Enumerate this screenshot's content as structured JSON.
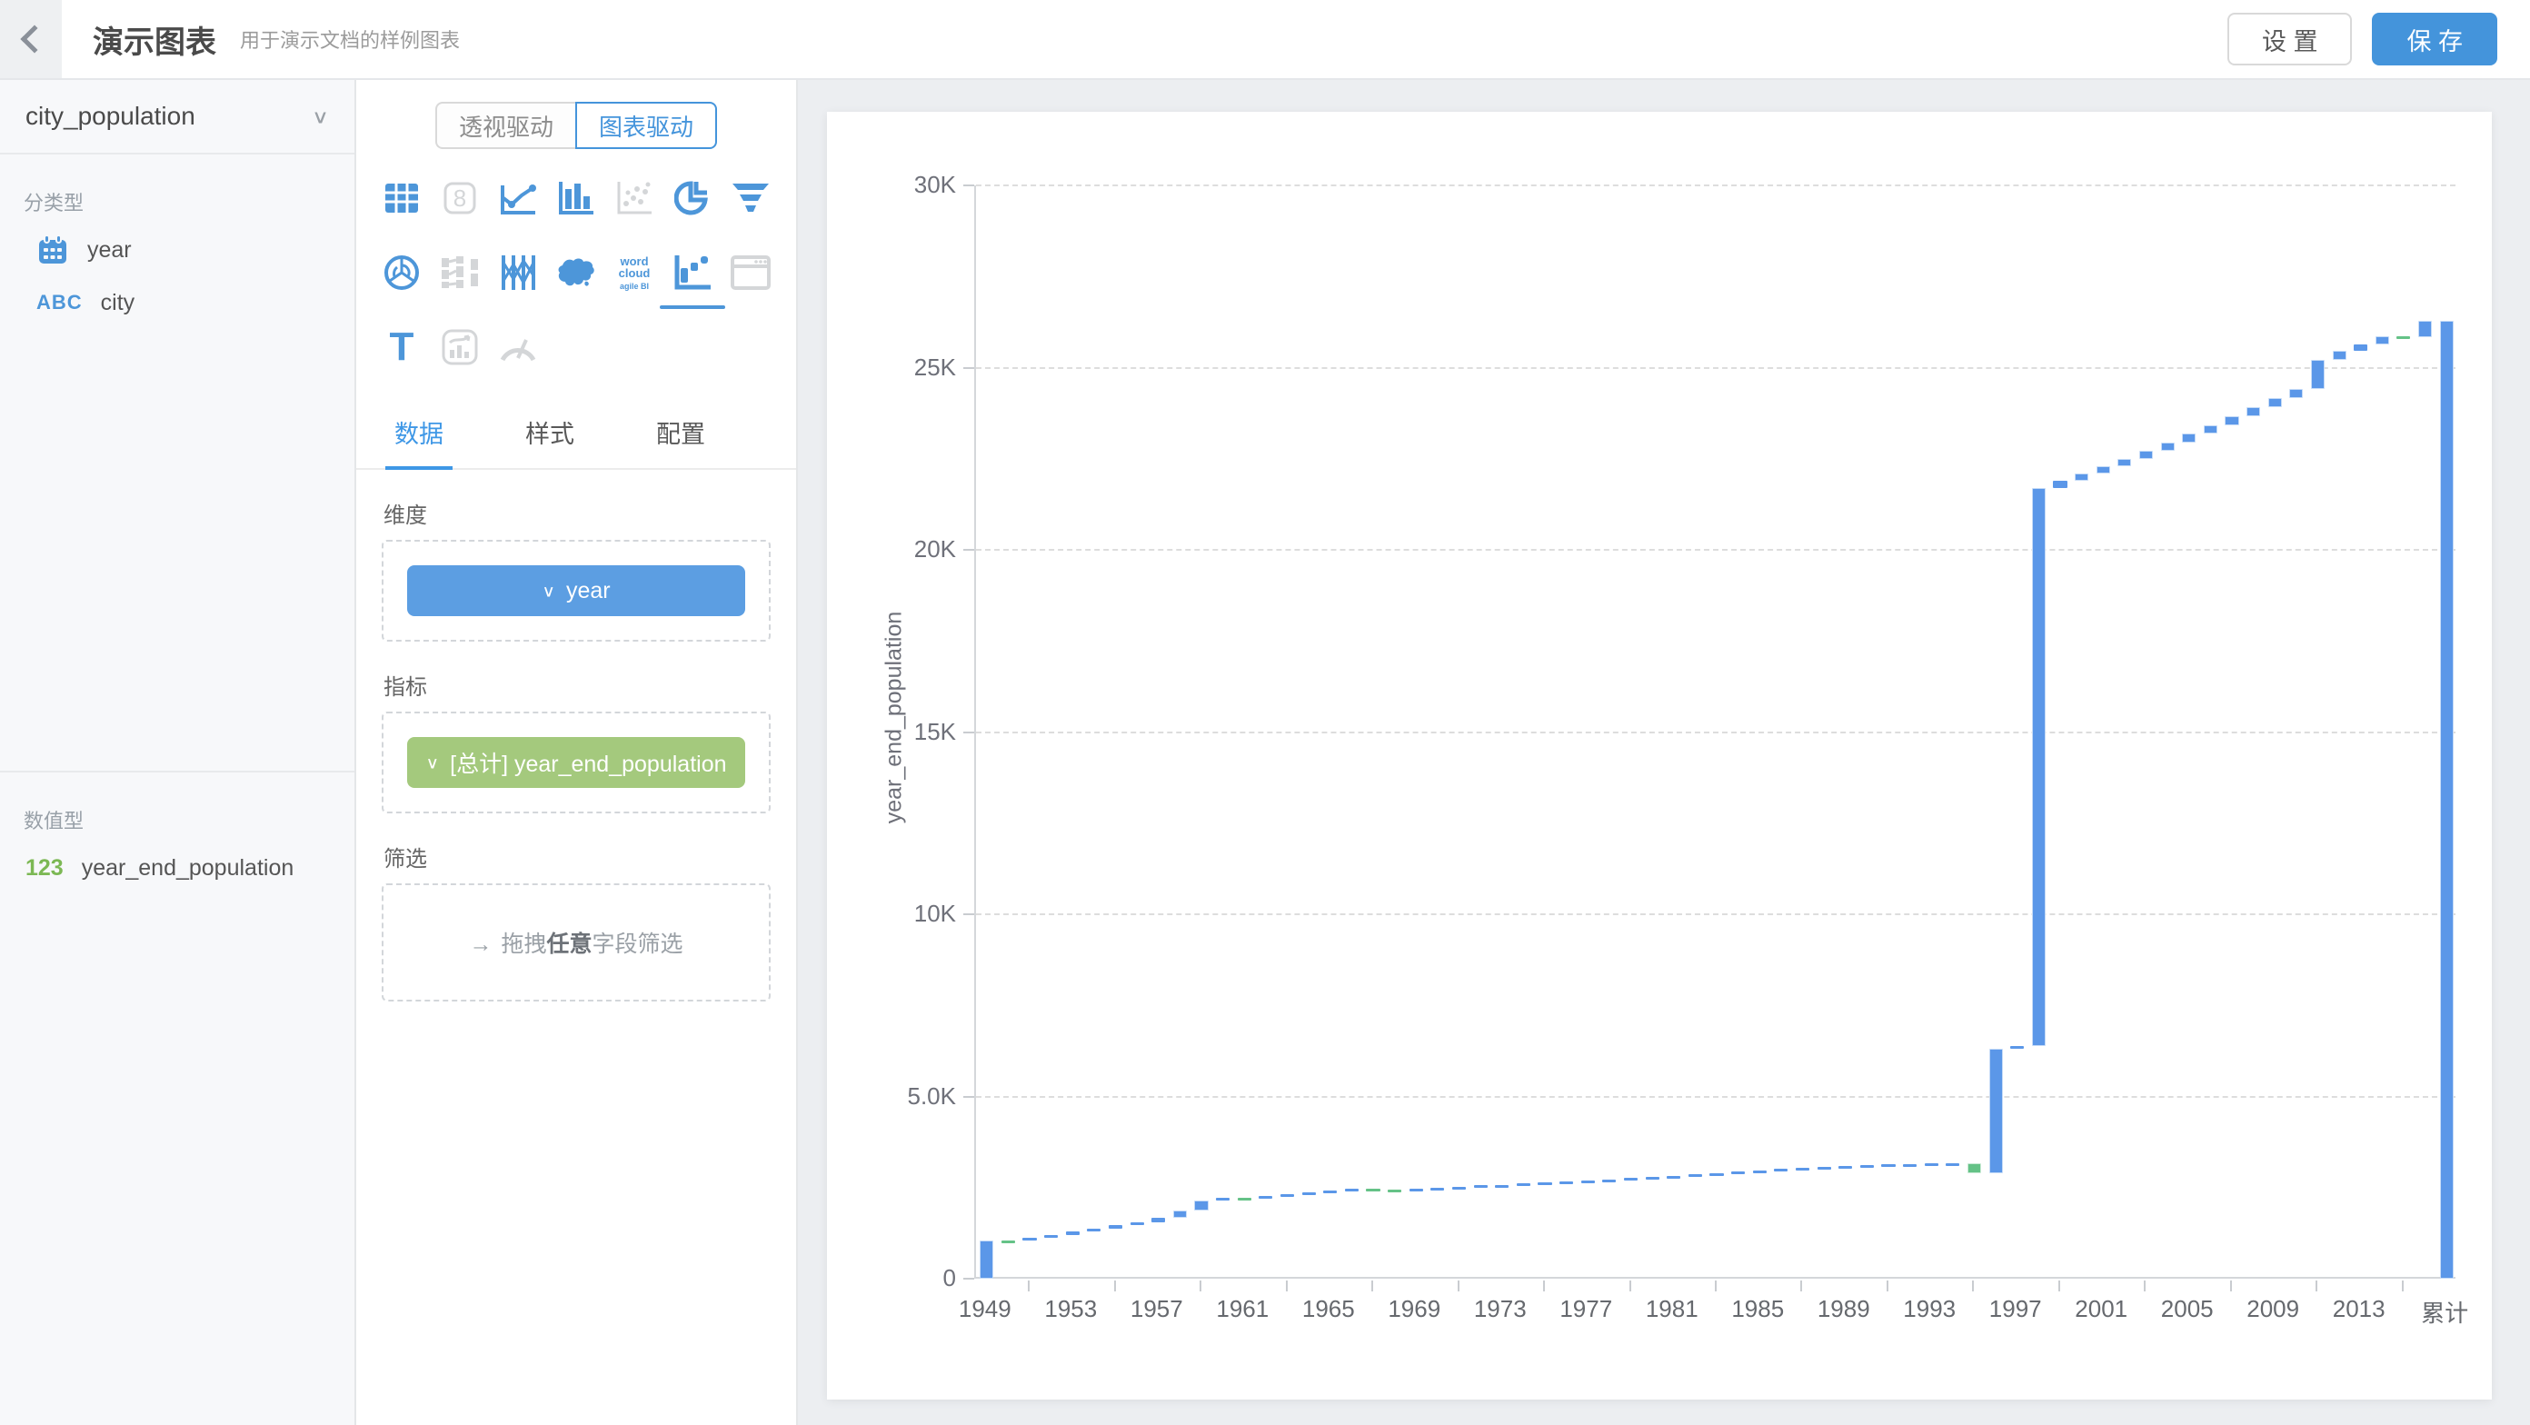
{
  "header": {
    "title": "演示图表",
    "subtitle": "用于演示文档的样例图表",
    "settings_label": "设 置",
    "save_label": "保 存"
  },
  "sidebar": {
    "dataset": "city_population",
    "categorical": {
      "label": "分类型",
      "items": [
        {
          "icon": "calendar-icon",
          "label": "year"
        },
        {
          "icon": "abc-text-icon",
          "abc": "ABC",
          "label": "city"
        }
      ]
    },
    "numeric": {
      "label": "数值型",
      "items": [
        {
          "icon": "number-123-icon",
          "num": "123",
          "label": "year_end_population"
        }
      ]
    }
  },
  "panel": {
    "mode_toggle": {
      "pivot": "透视驱动",
      "chart": "图表驱动",
      "active": "chart"
    },
    "chart_type_icons": [
      {
        "name": "table-chart-icon",
        "state": "enabled"
      },
      {
        "name": "score-card-icon",
        "state": "disabled"
      },
      {
        "name": "line-chart-icon",
        "state": "enabled"
      },
      {
        "name": "bar-chart-icon",
        "state": "enabled"
      },
      {
        "name": "scatter-chart-icon",
        "state": "disabled"
      },
      {
        "name": "pie-chart-icon",
        "state": "enabled"
      },
      {
        "name": "funnel-chart-icon",
        "state": "enabled"
      },
      {
        "name": "radar-chart-icon",
        "state": "enabled"
      },
      {
        "name": "sankey-chart-icon",
        "state": "disabled"
      },
      {
        "name": "parallel-chart-icon",
        "state": "enabled"
      },
      {
        "name": "map-chart-icon",
        "state": "enabled"
      },
      {
        "name": "wordcloud-chart-icon",
        "state": "enabled",
        "text": "word\ncloud\nagile BI"
      },
      {
        "name": "waterfall-chart-icon",
        "state": "selected"
      },
      {
        "name": "iframe-chart-icon",
        "state": "disabled"
      },
      {
        "name": "text-chart-icon",
        "state": "enabled",
        "glyph": "T"
      },
      {
        "name": "combo-chart-icon",
        "state": "disabled"
      },
      {
        "name": "gauge-chart-icon",
        "state": "disabled"
      }
    ],
    "tabs": [
      {
        "label": "数据",
        "active": true
      },
      {
        "label": "样式",
        "active": false
      },
      {
        "label": "配置",
        "active": false
      }
    ],
    "dimension": {
      "label": "维度",
      "pill": "year",
      "pill_chevron": "∨"
    },
    "measure": {
      "label": "指标",
      "pill": "[总计] year_end_population",
      "pill_chevron": "∨"
    },
    "filter": {
      "label": "筛选",
      "arrow": "→",
      "hint_prefix": "拖拽",
      "hint_bold": "任意",
      "hint_suffix": "字段筛选"
    }
  },
  "chart_data": {
    "type": "bar",
    "subtype": "waterfall",
    "title": "",
    "xlabel": "",
    "ylabel": "year_end_population",
    "ylim": [
      0,
      30000
    ],
    "ytick_values": [
      0,
      5000,
      10000,
      15000,
      20000,
      25000,
      30000
    ],
    "ytick_labels": [
      "0",
      "5.0K",
      "10K",
      "15K",
      "20K",
      "25K",
      "30K"
    ],
    "grid": "dashed-horizontal",
    "legend": "none",
    "x_label_interval": 4,
    "total_category": "累计",
    "colors": {
      "increase": "#5b97e8",
      "decrease": "#65c287",
      "total": "#5b97e8"
    },
    "categories": [
      "1949",
      "1950",
      "1951",
      "1952",
      "1953",
      "1954",
      "1955",
      "1956",
      "1957",
      "1958",
      "1959",
      "1960",
      "1961",
      "1962",
      "1963",
      "1964",
      "1965",
      "1966",
      "1967",
      "1968",
      "1969",
      "1970",
      "1971",
      "1972",
      "1973",
      "1974",
      "1975",
      "1976",
      "1977",
      "1978",
      "1979",
      "1980",
      "1981",
      "1982",
      "1983",
      "1984",
      "1985",
      "1986",
      "1987",
      "1988",
      "1989",
      "1990",
      "1991",
      "1992",
      "1993",
      "1994",
      "1995",
      "1996",
      "1997",
      "1998",
      "1999",
      "2000",
      "2001",
      "2002",
      "2003",
      "2004",
      "2005",
      "2006",
      "2007",
      "2008",
      "2009",
      "2010",
      "2011",
      "2012",
      "2013",
      "2014",
      "2015",
      "2016",
      "累计"
    ],
    "cumulative": [
      1050,
      1040,
      1120,
      1200,
      1290,
      1380,
      1460,
      1550,
      1660,
      1880,
      2150,
      2230,
      2210,
      2260,
      2320,
      2370,
      2420,
      2460,
      2450,
      2440,
      2470,
      2500,
      2530,
      2560,
      2580,
      2610,
      2640,
      2660,
      2690,
      2720,
      2760,
      2790,
      2830,
      2870,
      2900,
      2940,
      2980,
      3010,
      3040,
      3070,
      3090,
      3110,
      3130,
      3140,
      3155,
      3165,
      2905,
      6310,
      6395,
      21705,
      21900,
      22100,
      22300,
      22500,
      22720,
      22950,
      23180,
      23420,
      23670,
      23920,
      24170,
      24420,
      25220,
      25450,
      25630,
      25850,
      25830,
      26280,
      26280
    ]
  }
}
